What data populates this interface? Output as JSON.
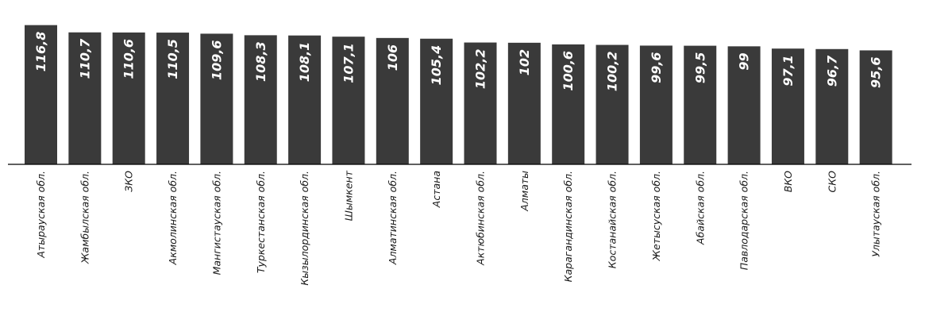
{
  "chart_data": {
    "type": "bar",
    "title": "",
    "xlabel": "",
    "ylabel": "",
    "categories": [
      "Атырауская обл.",
      "Жамбылская обл.",
      "ЗКО",
      "Акмолинская обл.",
      "Мангистауская обл.",
      "Туркестанская обл.",
      "Кызылординская обл.",
      "Шымкент",
      "Алматинская обл.",
      "Астана",
      "Актюбинская обл.",
      "Алматы",
      "Карагандинская обл.",
      "Костанайская обл.",
      "Жетысуская обл.",
      "Абайская обл.",
      "Павлодарская обл.",
      "ВКО",
      "СКО",
      "Улытауская обл."
    ],
    "values": [
      116.8,
      110.7,
      110.6,
      110.5,
      109.6,
      108.3,
      108.1,
      107.1,
      106,
      105.4,
      102.2,
      102,
      100.6,
      100.2,
      99.6,
      99.5,
      99,
      97.1,
      96.7,
      95.6
    ],
    "value_labels": [
      "116,8",
      "110,7",
      "110,6",
      "110,5",
      "109,6",
      "108,3",
      "108,1",
      "107,1",
      "106",
      "105,4",
      "102,2",
      "102",
      "100,6",
      "100,2",
      "99,6",
      "99,5",
      "99",
      "97,1",
      "96,7",
      "95,6"
    ],
    "ylim": [
      0,
      117
    ],
    "grid": false,
    "legend": "none",
    "bar_color": "#3a3a3a",
    "axis_color": "#000000"
  }
}
